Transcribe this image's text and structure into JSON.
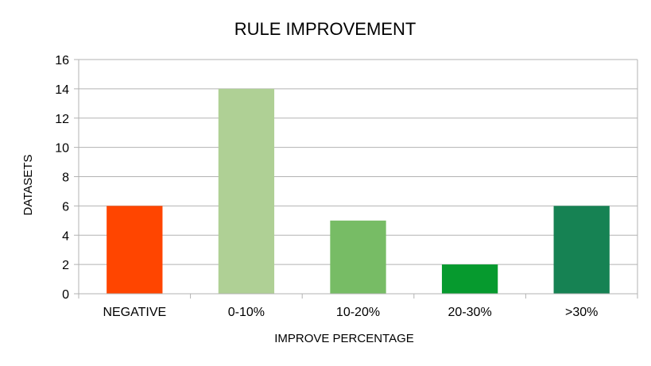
{
  "chart_data": {
    "type": "bar",
    "title": "RULE IMPROVEMENT",
    "xlabel": "IMPROVE PERCENTAGE",
    "ylabel": "DATASETS",
    "categories": [
      "NEGATIVE",
      "0-10%",
      "10-20%",
      "20-30%",
      ">30%"
    ],
    "values": [
      6,
      14,
      5,
      2,
      6
    ],
    "colors": [
      "#ff4500",
      "#afd095",
      "#77bc65",
      "#069a2e",
      "#168253"
    ],
    "ylim": [
      0,
      16
    ],
    "yticks": [
      "0",
      "2",
      "4",
      "6",
      "8",
      "10",
      "12",
      "14",
      "16"
    ],
    "grid": true,
    "legend": "none"
  }
}
